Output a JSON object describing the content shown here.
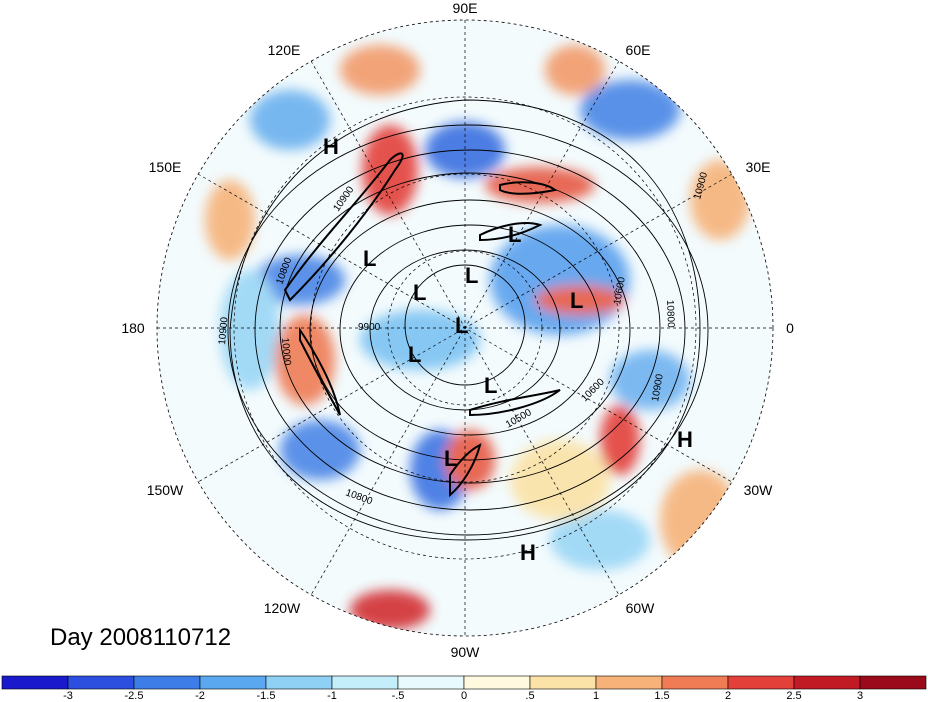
{
  "title": "Day 2008110712",
  "longitude_labels": [
    "90E",
    "60E",
    "30E",
    "0",
    "30W",
    "60W",
    "90W",
    "120W",
    "150W",
    "180",
    "150E",
    "120E"
  ],
  "pressure_systems": [
    "H",
    "H",
    "H",
    "L",
    "L",
    "L",
    "L",
    "L",
    "L",
    "L",
    "L",
    "L"
  ],
  "contour_labels": [
    "10900",
    "10900",
    "10800",
    "10800",
    "10600",
    "10600",
    "10500",
    "10000",
    "9900",
    "10900",
    "10800",
    "10900"
  ],
  "colorbar": {
    "ticks": [
      "-3",
      "-2.5",
      "-2",
      "-1.5",
      "-1",
      "-.5",
      "0",
      ".5",
      "1",
      "1.5",
      "2",
      "2.5",
      "3"
    ],
    "colors": [
      "#1a1acc",
      "#2c4fe0",
      "#3d7de8",
      "#5aa8f0",
      "#8fd0f5",
      "#c4eefa",
      "#e8fafd",
      "#fffadf",
      "#fbe2a6",
      "#f6b279",
      "#ef7c55",
      "#e3403a",
      "#c21a25",
      "#9a0a1a"
    ]
  }
}
